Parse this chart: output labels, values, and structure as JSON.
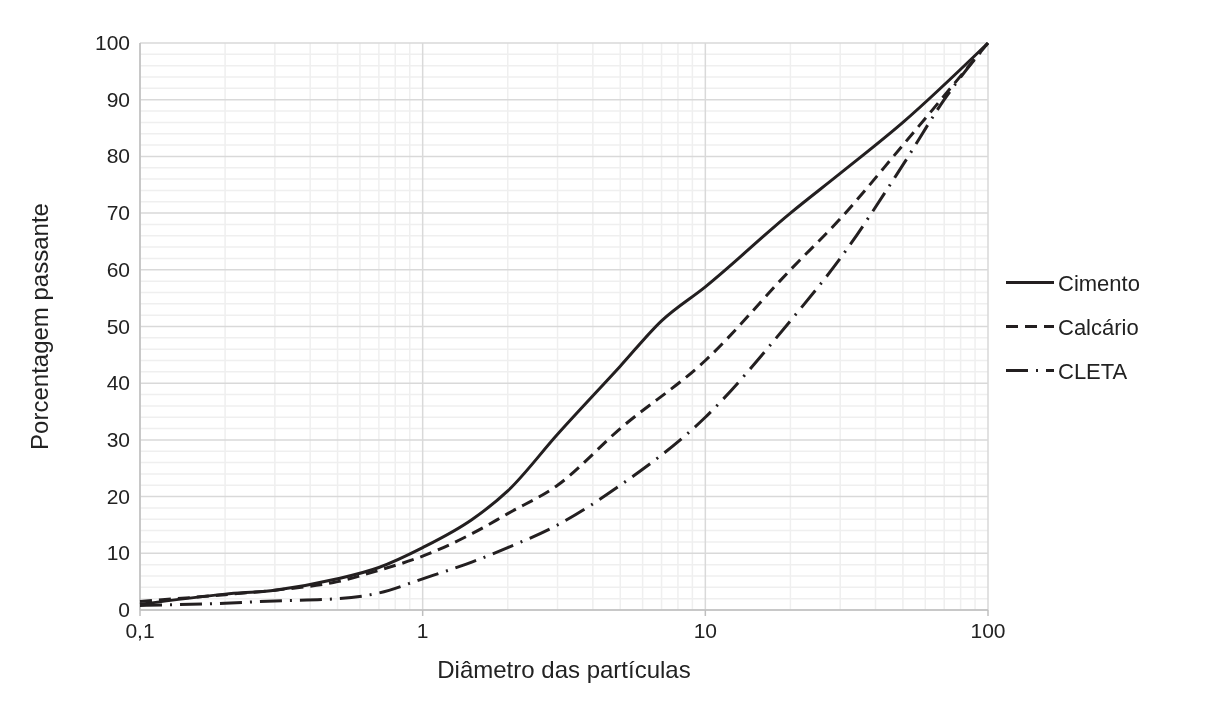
{
  "chart_data": {
    "type": "line",
    "xlabel": "Diâmetro das partículas",
    "ylabel": "Porcentagem passante",
    "log": "x",
    "grid": true,
    "legend": "right",
    "xlim": [
      0.1,
      100
    ],
    "xticks": [
      {
        "value": 0.1,
        "label": "0,1"
      },
      1,
      10,
      100
    ],
    "ylim": [
      0,
      100
    ],
    "yticks": [
      0,
      10,
      20,
      30,
      40,
      50,
      60,
      70,
      80,
      90,
      100
    ],
    "series": [
      {
        "name": "Cimento",
        "color": "#231f20",
        "line_style": "solid",
        "x": [
          0.1,
          0.2,
          0.3,
          0.5,
          0.7,
          1,
          1.5,
          2,
          3,
          5,
          7,
          10,
          20,
          30,
          50,
          100
        ],
        "values": [
          1.0,
          2.8,
          3.5,
          5.5,
          7.5,
          11,
          16,
          21,
          31,
          43,
          51,
          57,
          70,
          77,
          86,
          100
        ]
      },
      {
        "name": "Calcário",
        "color": "#231f20",
        "line_style": "dashed",
        "x": [
          0.1,
          0.2,
          0.3,
          0.5,
          0.7,
          1,
          1.5,
          2,
          3,
          5,
          10,
          20,
          30,
          50,
          100
        ],
        "values": [
          1.5,
          2.7,
          3.5,
          5,
          7,
          9.5,
          13.5,
          17,
          22,
          32,
          44,
          60,
          69,
          82,
          100
        ]
      },
      {
        "name": "CLETA",
        "color": "#231f20",
        "line_style": "dashdot",
        "x": [
          0.1,
          0.2,
          0.3,
          0.5,
          0.7,
          1,
          1.5,
          2,
          3,
          5,
          10,
          20,
          30,
          50,
          70,
          100
        ],
        "values": [
          0.8,
          1.2,
          1.6,
          2,
          3,
          5.5,
          8.5,
          11,
          15,
          22,
          34,
          51,
          62,
          78.5,
          90,
          100
        ]
      }
    ]
  }
}
